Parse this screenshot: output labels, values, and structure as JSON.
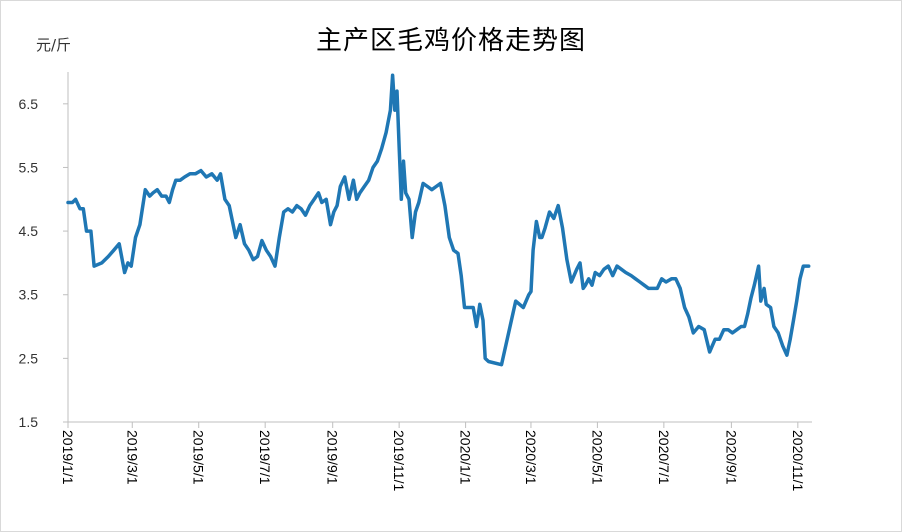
{
  "chart_data": {
    "type": "line",
    "title": "主产区毛鸡价格走势图",
    "ylabel": "元/斤",
    "xlabel": "",
    "ylim": [
      1.5,
      7.0
    ],
    "yticks": [
      1.5,
      2.5,
      3.5,
      4.5,
      5.5,
      6.5
    ],
    "ytick_labels": [
      "1.5",
      "2.5",
      "3.5",
      "4.5",
      "5.5",
      "6.5"
    ],
    "xtick_labels": [
      "2019/1/1",
      "2019/3/1",
      "2019/5/1",
      "2019/7/1",
      "2019/9/1",
      "2019/11/1",
      "2020/1/1",
      "2020/3/1",
      "2020/5/1",
      "2020/7/1",
      "2020/9/1",
      "2020/11/1"
    ],
    "xtick_dates": [
      "2019-01-01",
      "2019-03-01",
      "2019-05-01",
      "2019-07-01",
      "2019-09-01",
      "2019-11-01",
      "2020-01-01",
      "2020-03-01",
      "2020-05-01",
      "2020-07-01",
      "2020-09-01",
      "2020-11-01"
    ],
    "grid": false,
    "line_color": "#1f77b4",
    "series": [
      {
        "x": [
          "2019-01-01",
          "2019-01-05",
          "2019-01-08",
          "2019-01-12",
          "2019-01-15",
          "2019-01-18",
          "2019-01-22",
          "2019-01-25",
          "2019-02-01",
          "2019-02-07",
          "2019-02-12",
          "2019-02-17",
          "2019-02-22",
          "2019-02-25",
          "2019-02-28",
          "2019-03-04",
          "2019-03-08",
          "2019-03-13",
          "2019-03-17",
          "2019-03-20",
          "2019-03-24",
          "2019-03-28",
          "2019-04-01",
          "2019-04-04",
          "2019-04-07",
          "2019-04-10",
          "2019-04-14",
          "2019-04-18",
          "2019-04-23",
          "2019-04-28",
          "2019-05-03",
          "2019-05-08",
          "2019-05-13",
          "2019-05-18",
          "2019-05-21",
          "2019-05-25",
          "2019-05-29",
          "2019-06-04",
          "2019-06-08",
          "2019-06-12",
          "2019-06-16",
          "2019-06-20",
          "2019-06-24",
          "2019-06-28",
          "2019-07-02",
          "2019-07-06",
          "2019-07-10",
          "2019-07-14",
          "2019-07-18",
          "2019-07-22",
          "2019-07-26",
          "2019-07-30",
          "2019-08-03",
          "2019-08-07",
          "2019-08-11",
          "2019-08-15",
          "2019-08-19",
          "2019-08-22",
          "2019-08-26",
          "2019-08-30",
          "2019-09-02",
          "2019-09-05",
          "2019-09-08",
          "2019-09-12",
          "2019-09-16",
          "2019-09-20",
          "2019-09-23",
          "2019-09-26",
          "2019-09-30",
          "2019-10-04",
          "2019-10-08",
          "2019-10-12",
          "2019-10-16",
          "2019-10-20",
          "2019-10-24",
          "2019-10-26",
          "2019-10-28",
          "2019-10-30",
          "2019-11-01",
          "2019-11-03",
          "2019-11-05",
          "2019-11-07",
          "2019-11-10",
          "2019-11-13",
          "2019-11-16",
          "2019-11-19",
          "2019-11-23",
          "2019-11-27",
          "2019-12-01",
          "2019-12-05",
          "2019-12-09",
          "2019-12-13",
          "2019-12-17",
          "2019-12-21",
          "2019-12-25",
          "2019-12-28",
          "2019-12-31",
          "2020-01-04",
          "2020-01-08",
          "2020-01-11",
          "2020-01-14",
          "2020-01-17",
          "2020-01-19",
          "2020-01-22",
          "2020-02-03",
          "2020-02-16",
          "2020-02-23",
          "2020-02-28",
          "2020-03-01",
          "2020-03-03",
          "2020-03-06",
          "2020-03-09",
          "2020-03-11",
          "2020-03-14",
          "2020-03-18",
          "2020-03-22",
          "2020-03-26",
          "2020-03-30",
          "2020-04-03",
          "2020-04-07",
          "2020-04-12",
          "2020-04-15",
          "2020-04-18",
          "2020-04-20",
          "2020-04-23",
          "2020-04-26",
          "2020-04-29",
          "2020-05-03",
          "2020-05-07",
          "2020-05-11",
          "2020-05-15",
          "2020-05-19",
          "2020-05-23",
          "2020-05-27",
          "2020-06-01",
          "2020-06-05",
          "2020-06-09",
          "2020-06-13",
          "2020-06-17",
          "2020-06-21",
          "2020-06-25",
          "2020-06-29",
          "2020-07-03",
          "2020-07-08",
          "2020-07-12",
          "2020-07-16",
          "2020-07-20",
          "2020-07-24",
          "2020-07-28",
          "2020-08-02",
          "2020-08-07",
          "2020-08-12",
          "2020-08-17",
          "2020-08-21",
          "2020-08-25",
          "2020-08-29",
          "2020-09-02",
          "2020-09-06",
          "2020-09-10",
          "2020-09-13",
          "2020-09-16",
          "2020-09-19",
          "2020-09-22",
          "2020-09-26",
          "2020-09-28",
          "2020-10-01",
          "2020-10-03",
          "2020-10-07",
          "2020-10-10",
          "2020-10-14",
          "2020-10-18",
          "2020-10-22",
          "2020-10-25",
          "2020-10-28",
          "2020-10-31",
          "2020-11-03",
          "2020-11-06",
          "2020-11-09",
          "2020-11-11"
        ],
        "values": [
          4.95,
          4.95,
          5.0,
          4.85,
          4.85,
          4.5,
          4.5,
          3.95,
          4.0,
          4.1,
          4.2,
          4.3,
          3.85,
          4.0,
          3.95,
          4.4,
          4.6,
          5.15,
          5.05,
          5.1,
          5.15,
          5.05,
          5.05,
          4.95,
          5.15,
          5.3,
          5.3,
          5.35,
          5.4,
          5.4,
          5.45,
          5.35,
          5.4,
          5.3,
          5.4,
          5.0,
          4.9,
          4.4,
          4.6,
          4.3,
          4.2,
          4.05,
          4.1,
          4.35,
          4.2,
          4.1,
          3.95,
          4.4,
          4.8,
          4.85,
          4.8,
          4.9,
          4.85,
          4.75,
          4.9,
          5.0,
          5.1,
          4.95,
          5.0,
          4.6,
          4.8,
          4.9,
          5.2,
          5.35,
          5.0,
          5.3,
          5.0,
          5.1,
          5.2,
          5.3,
          5.5,
          5.6,
          5.8,
          6.05,
          6.4,
          6.95,
          6.4,
          6.7,
          5.8,
          5.0,
          5.6,
          5.1,
          5.0,
          4.4,
          4.8,
          4.95,
          5.25,
          5.2,
          5.15,
          5.2,
          5.25,
          4.9,
          4.4,
          4.2,
          4.15,
          3.8,
          3.3,
          3.3,
          3.3,
          3.0,
          3.35,
          3.1,
          2.5,
          2.45,
          2.4,
          3.4,
          3.3,
          3.5,
          3.55,
          4.2,
          4.65,
          4.4,
          4.4,
          4.55,
          4.8,
          4.7,
          4.9,
          4.55,
          4.05,
          3.7,
          3.9,
          4.0,
          3.6,
          3.65,
          3.75,
          3.65,
          3.85,
          3.8,
          3.9,
          3.95,
          3.8,
          3.95,
          3.9,
          3.85,
          3.8,
          3.75,
          3.7,
          3.65,
          3.6,
          3.6,
          3.6,
          3.75,
          3.7,
          3.75,
          3.75,
          3.6,
          3.3,
          3.15,
          2.9,
          3.0,
          2.95,
          2.6,
          2.8,
          2.8,
          2.95,
          2.95,
          2.9,
          2.95,
          3.0,
          3.0,
          3.2,
          3.45,
          3.65,
          3.95,
          3.4,
          3.6,
          3.35,
          3.3,
          3.0,
          2.9,
          2.7,
          2.55,
          2.8,
          3.1,
          3.4,
          3.75,
          3.95,
          3.95,
          3.95
        ]
      }
    ]
  }
}
